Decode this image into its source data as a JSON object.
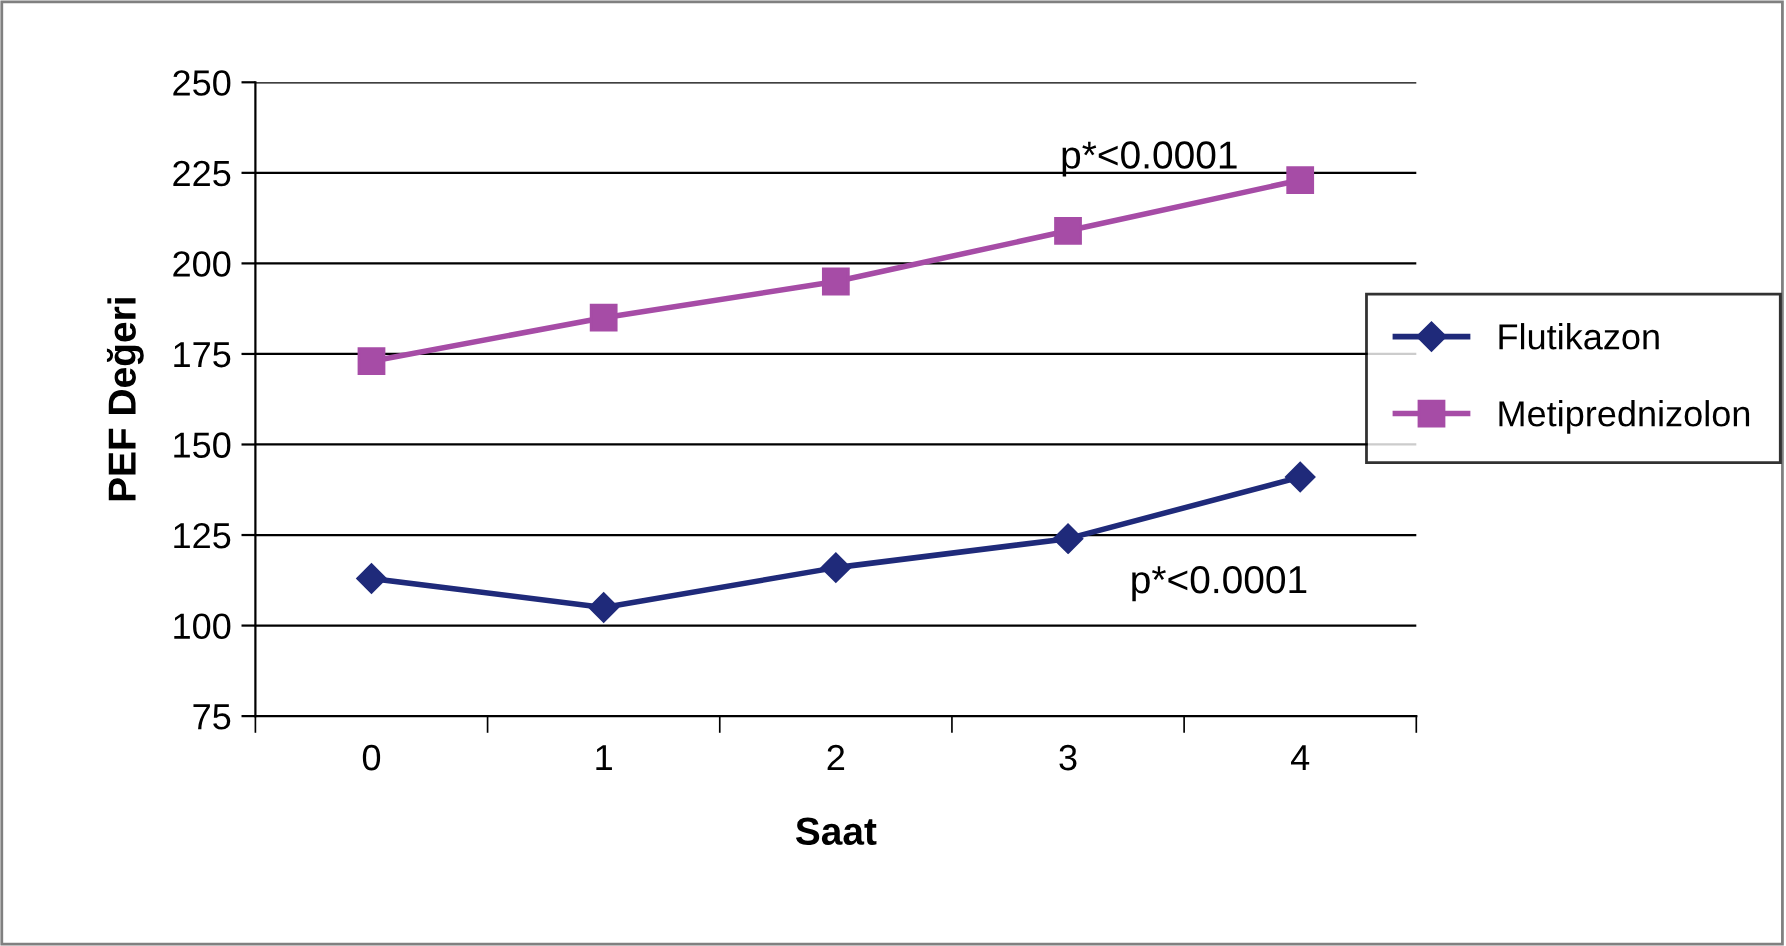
{
  "chart_data": {
    "type": "line",
    "xlabel": "Saat",
    "ylabel": "PEF Değeri",
    "categories": [
      "0",
      "1",
      "2",
      "3",
      "4"
    ],
    "series": [
      {
        "name": "Flutikazon",
        "color": "#1f2a7a",
        "marker": "diamond",
        "values": [
          113,
          105,
          116,
          124,
          141
        ]
      },
      {
        "name": "Metiprednizolon",
        "color": "#a64ca6",
        "marker": "square",
        "values": [
          173,
          185,
          195,
          209,
          223
        ]
      }
    ],
    "ylim": [
      75,
      250
    ],
    "yticks": [
      75,
      100,
      125,
      150,
      175,
      200,
      225,
      250
    ],
    "grid": "y",
    "legend": "right",
    "annotations": [
      "p*<0.0001",
      "p*<0.0001"
    ]
  }
}
